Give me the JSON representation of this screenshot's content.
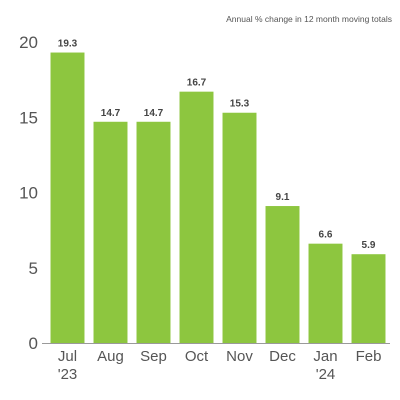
{
  "chart_data": {
    "type": "bar",
    "title": "Annual % change in 12 month moving totals",
    "categories": [
      "Jul\n'23",
      "Aug",
      "Sep",
      "Oct",
      "Nov",
      "Dec",
      "Jan\n'24",
      "Feb"
    ],
    "values": [
      19.3,
      14.7,
      14.7,
      16.7,
      15.3,
      9.1,
      6.6,
      5.9
    ],
    "data_labels": [
      "19.3",
      "14.7",
      "14.7",
      "16.7",
      "15.3",
      "9.1",
      "6.6",
      "5.9"
    ],
    "y_ticks": [
      "0",
      "5",
      "10",
      "15",
      "20"
    ],
    "ylim": [
      0,
      20
    ],
    "xlabel": "",
    "ylabel": "",
    "grid": false,
    "legend": "none",
    "bar_color": "#8dc63f",
    "axis_color": "#9a9a9a",
    "text_color": "#555555"
  }
}
